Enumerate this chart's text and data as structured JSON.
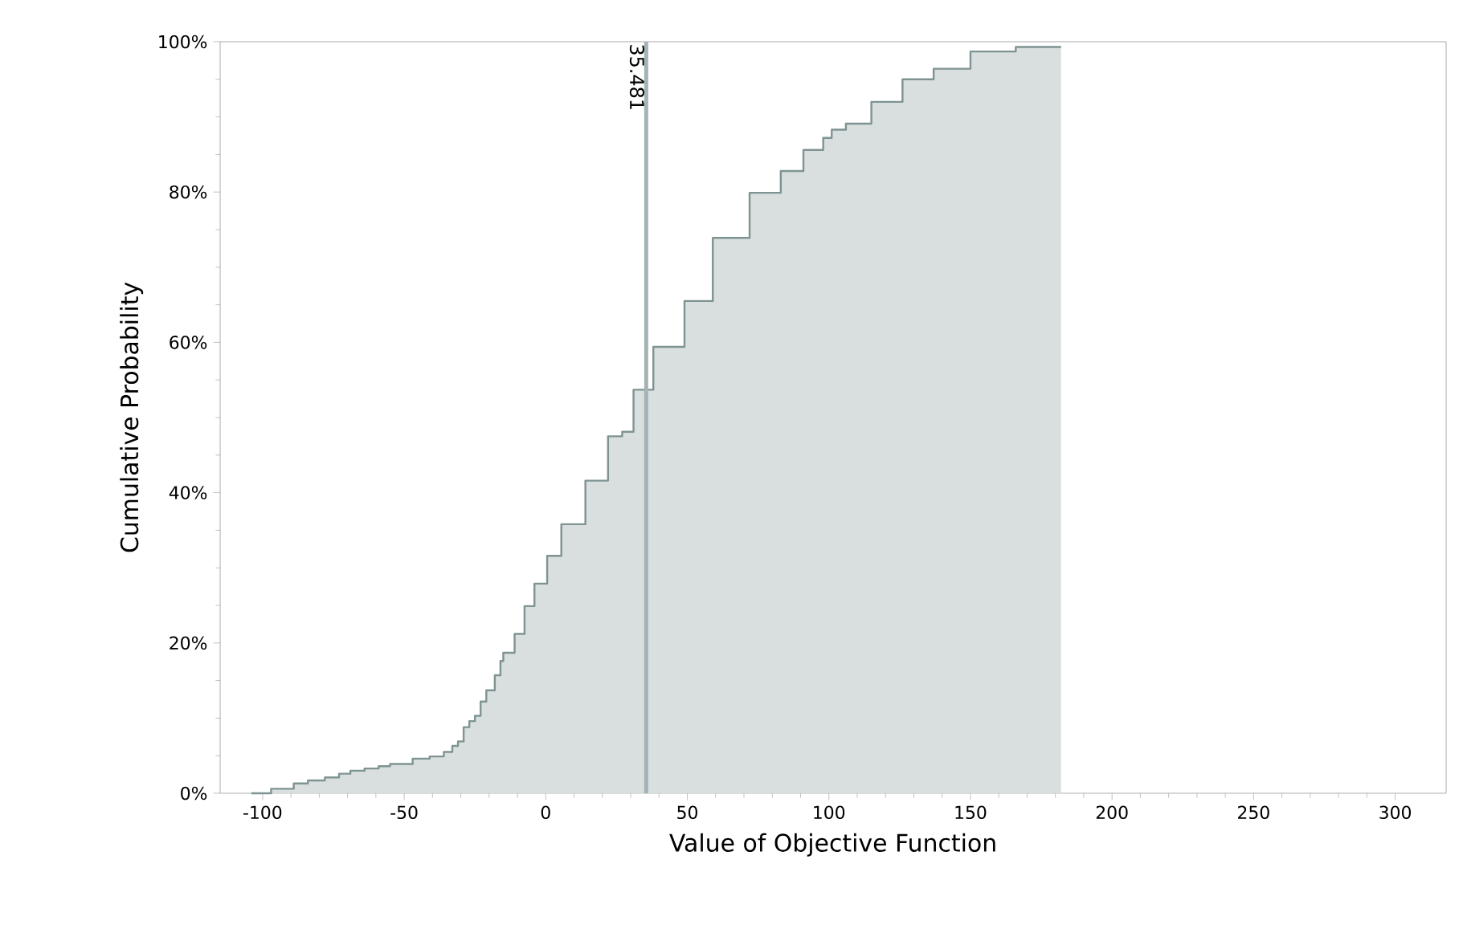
{
  "chart_data": {
    "type": "step",
    "xlabel": "Value of Objective Function",
    "ylabel": "Cumulative Probability",
    "xlim": [
      -115,
      318
    ],
    "ylim": [
      0,
      100
    ],
    "xticks": [
      -100,
      -50,
      0,
      50,
      100,
      150,
      200,
      250,
      300
    ],
    "yticks": [
      {
        "value": 0,
        "label": "0%"
      },
      {
        "value": 20,
        "label": "20%"
      },
      {
        "value": 40,
        "label": "40%"
      },
      {
        "value": 60,
        "label": "60%"
      },
      {
        "value": 80,
        "label": "80%"
      },
      {
        "value": 100,
        "label": "100%"
      }
    ],
    "color": "#7f9393",
    "x": [
      -104,
      -97,
      -89,
      -84,
      -78,
      -73,
      -69,
      -64,
      -59,
      -55,
      -47,
      -41,
      -36,
      -33,
      -31,
      -29,
      -27,
      -25,
      -23,
      -21,
      -18,
      -16,
      -15,
      -11,
      -7.5,
      -4,
      0.5,
      5.5,
      14,
      22,
      27,
      31,
      38,
      49,
      59,
      72,
      83,
      91,
      98,
      101,
      106,
      115,
      126,
      137,
      150,
      166,
      182
    ],
    "values": [
      0,
      0.6,
      1.3,
      1.7,
      2.1,
      2.6,
      3.0,
      3.3,
      3.6,
      3.9,
      4.6,
      4.9,
      5.5,
      6.3,
      6.9,
      8.8,
      9.6,
      10.3,
      12.2,
      13.7,
      15.7,
      17.6,
      18.7,
      21.2,
      24.9,
      27.9,
      31.6,
      35.8,
      41.6,
      47.5,
      48.1,
      53.7,
      59.4,
      65.5,
      73.9,
      79.9,
      82.8,
      85.6,
      87.2,
      88.3,
      89.1,
      92.0,
      95.0,
      96.4,
      98.7,
      99.3,
      99.3
    ],
    "ref_lines": [
      {
        "axis": "x",
        "value": 35.481,
        "label": "35.481",
        "color": "#a3b3b6"
      }
    ]
  }
}
